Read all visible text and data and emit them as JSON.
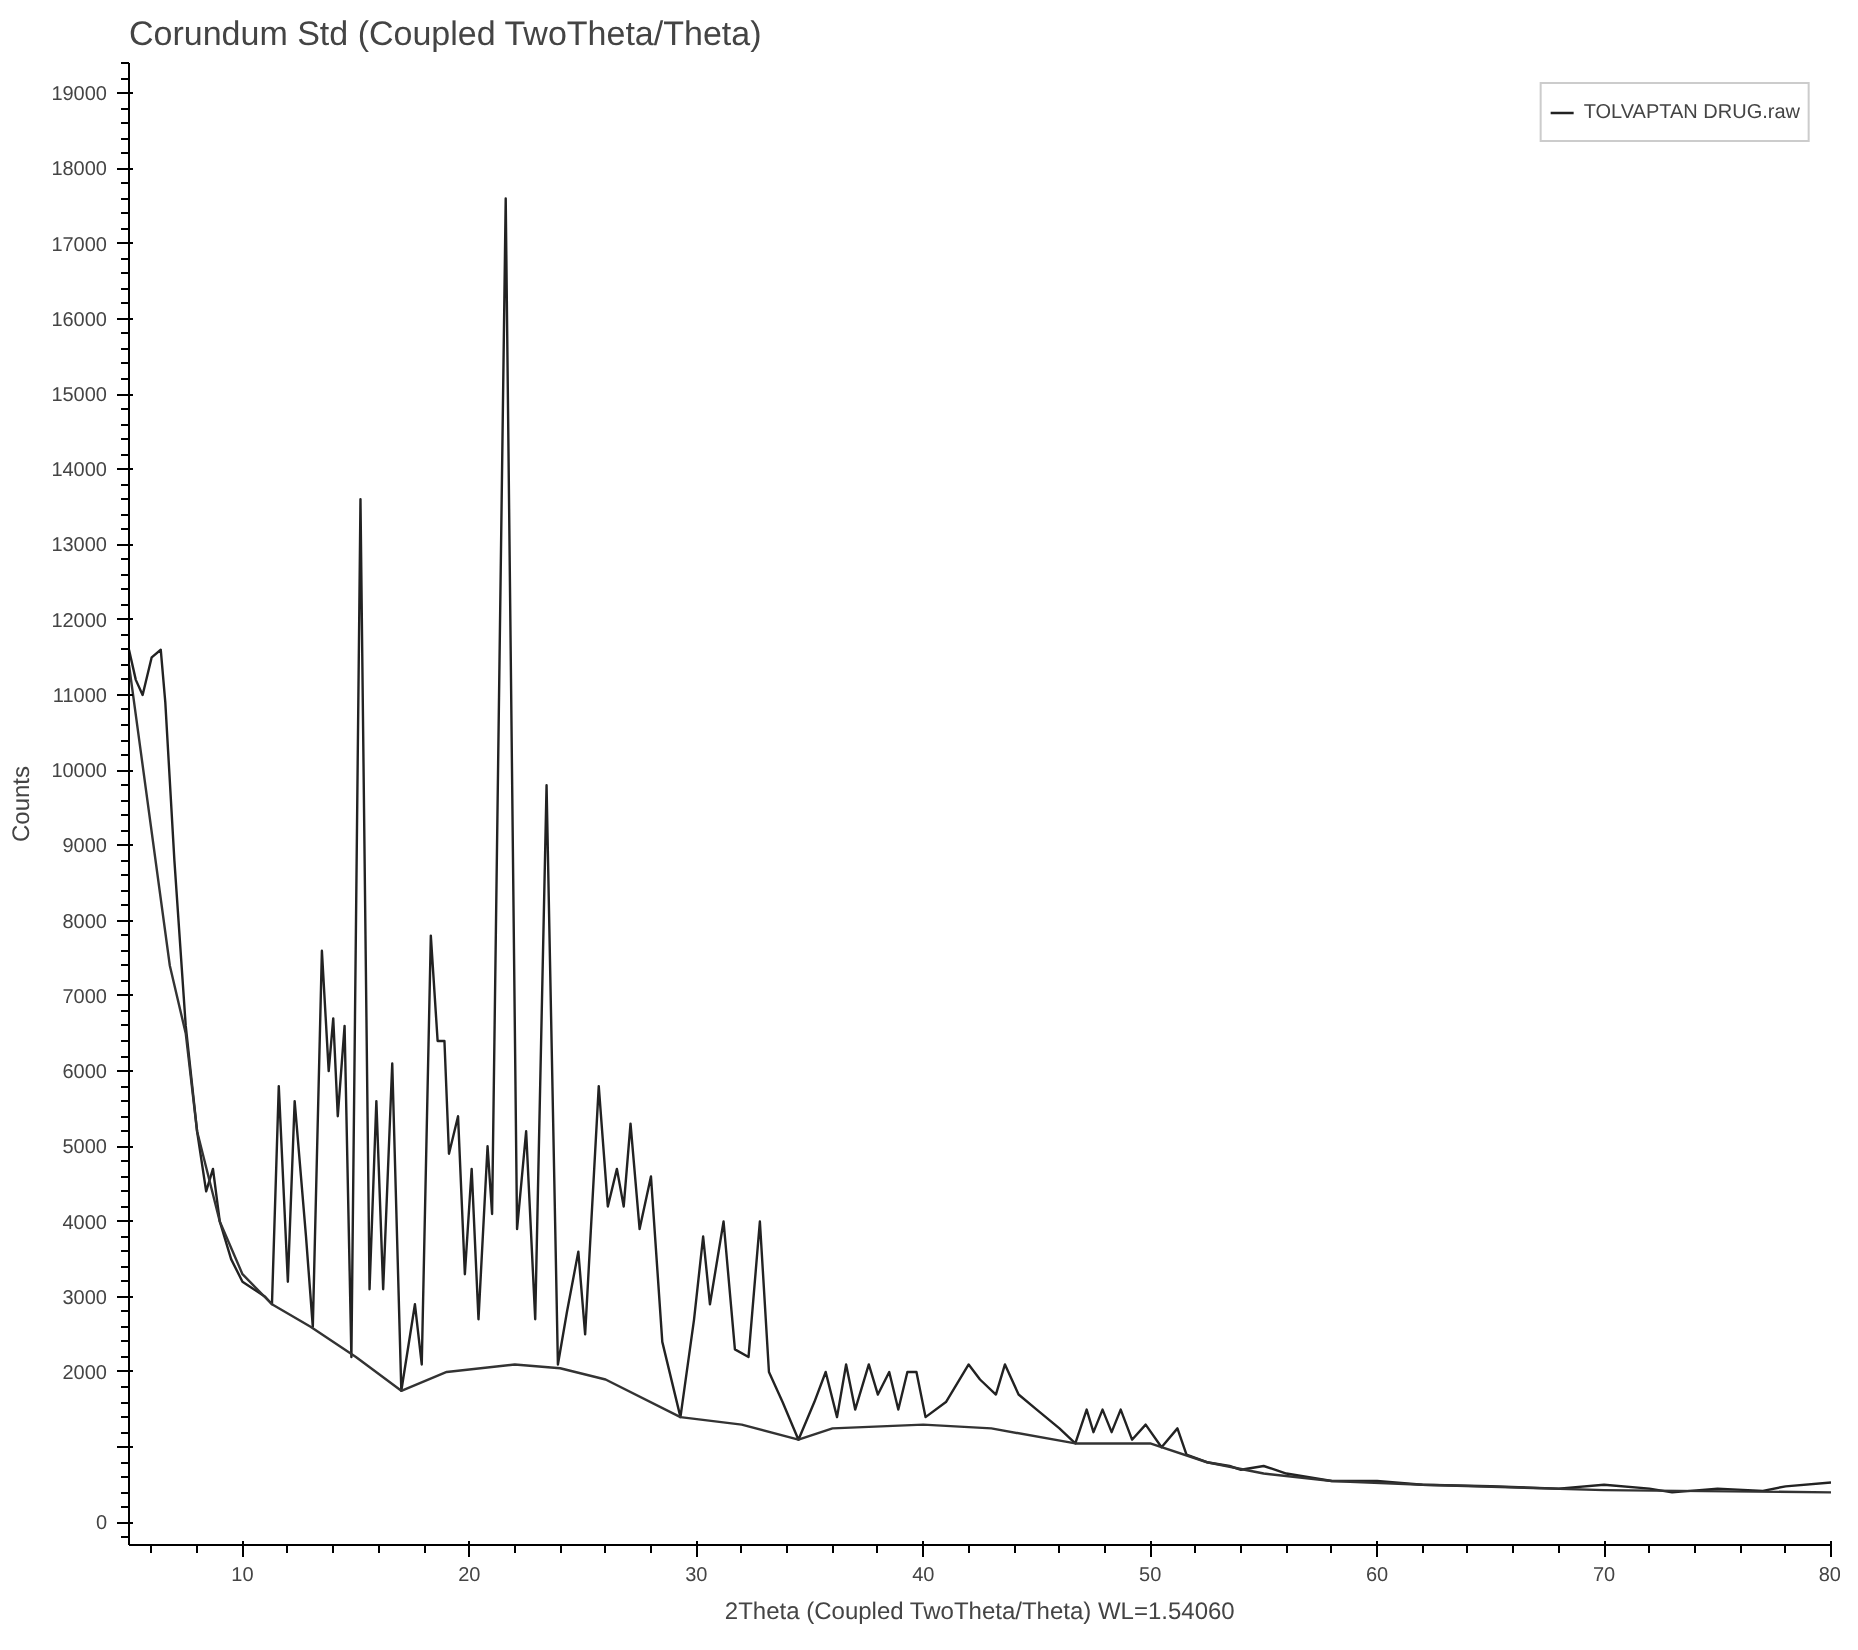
{
  "chart_data": {
    "type": "line",
    "title": "Corundum Std (Coupled TwoTheta/Theta)",
    "xlabel": "2Theta (Coupled TwoTheta/Theta) WL=1.54060",
    "ylabel": "Counts",
    "xlim": [
      5,
      80
    ],
    "ylim": [
      -300,
      19400
    ],
    "xticks": [
      10,
      20,
      30,
      40,
      50,
      60,
      70,
      80
    ],
    "yticks": [
      0,
      {
        "value": 1000,
        "label": null
      },
      2000,
      3000,
      4000,
      5000,
      6000,
      7000,
      8000,
      9000,
      10000,
      11000,
      12000,
      13000,
      14000,
      15000,
      16000,
      17000,
      18000,
      19000
    ],
    "grid": false,
    "legend": "top right",
    "marker": "none",
    "line_style": "solid",
    "series": [
      {
        "name": "TOLVAPTAN DRUG.raw",
        "color": "#222222",
        "x": [
          5,
          5.3,
          5.6,
          6,
          6.4,
          6.6,
          7,
          7.5,
          8,
          8.4,
          8.7,
          9,
          9.5,
          10,
          10.5,
          11,
          11.3,
          11.6,
          12,
          12.3,
          12.8,
          13.1,
          13.5,
          13.8,
          14,
          14.2,
          14.5,
          14.8,
          15.2,
          15.6,
          15.9,
          16.2,
          16.6,
          17,
          17.6,
          17.9,
          18.3,
          18.6,
          18.9,
          19.1,
          19.5,
          19.8,
          20.1,
          20.4,
          20.8,
          21,
          21.6,
          22.1,
          22.5,
          22.9,
          23.4,
          23.9,
          24.3,
          24.8,
          25.1,
          25.7,
          26.1,
          26.5,
          26.8,
          27.1,
          27.5,
          28,
          28.5,
          29.3,
          29.9,
          30.3,
          30.6,
          31.2,
          31.7,
          32.3,
          32.8,
          33.2,
          33.8,
          34.5,
          35.2,
          35.7,
          36.2,
          36.6,
          37,
          37.6,
          38,
          38.5,
          38.9,
          39.3,
          39.7,
          40.1,
          41,
          42,
          42.5,
          43.2,
          43.6,
          44.2,
          45,
          46,
          46.7,
          47.2,
          47.5,
          47.9,
          48.3,
          48.7,
          49.2,
          49.8,
          50.5,
          51.2,
          51.6,
          52.5,
          53.5,
          54,
          55,
          56,
          57,
          58,
          60,
          62,
          65,
          68,
          70,
          72,
          73,
          75,
          77,
          78,
          80
        ],
        "values": [
          11600,
          11200,
          11000,
          11500,
          11600,
          10900,
          8800,
          6600,
          5200,
          4400,
          4700,
          4000,
          3500,
          3200,
          3100,
          3000,
          2900,
          5800,
          3200,
          5600,
          3800,
          2600,
          7600,
          6000,
          6700,
          5400,
          6600,
          2200,
          13600,
          3100,
          5600,
          3100,
          6100,
          1750,
          2900,
          2100,
          7800,
          6400,
          6400,
          4900,
          5400,
          3300,
          4700,
          2700,
          5000,
          4100,
          17600,
          3900,
          5200,
          2700,
          9800,
          2100,
          2800,
          3600,
          2500,
          5800,
          4200,
          4700,
          4200,
          5300,
          3900,
          4600,
          2400,
          1400,
          2700,
          3800,
          2900,
          4000,
          2300,
          2200,
          4000,
          2000,
          1600,
          1100,
          1600,
          2000,
          1400,
          2100,
          1500,
          2100,
          1700,
          2000,
          1500,
          2000,
          2000,
          1400,
          1600,
          2100,
          1900,
          1700,
          2100,
          1700,
          1500,
          1250,
          1050,
          1500,
          1200,
          1500,
          1200,
          1500,
          1100,
          1300,
          1000,
          1250,
          900,
          800,
          750,
          700,
          750,
          650,
          600,
          550,
          550,
          500,
          480,
          450,
          500,
          450,
          400,
          450,
          420,
          480,
          530
        ]
      },
      {
        "color": "#333333",
        "x": [
          5,
          6.8,
          7.5,
          8,
          9,
          10,
          11.3,
          13,
          15,
          17,
          19,
          22,
          24,
          26,
          29.3,
          32,
          34.5,
          36,
          40,
          43,
          46.7,
          50,
          52.5,
          55,
          58,
          62,
          70,
          80
        ],
        "values": [
          11400,
          7400,
          6500,
          5200,
          4000,
          3300,
          2900,
          2600,
          2200,
          1750,
          2000,
          2100,
          2050,
          1900,
          1400,
          1300,
          1100,
          1250,
          1300,
          1250,
          1050,
          1050,
          800,
          650,
          550,
          500,
          430,
          400
        ]
      }
    ]
  }
}
